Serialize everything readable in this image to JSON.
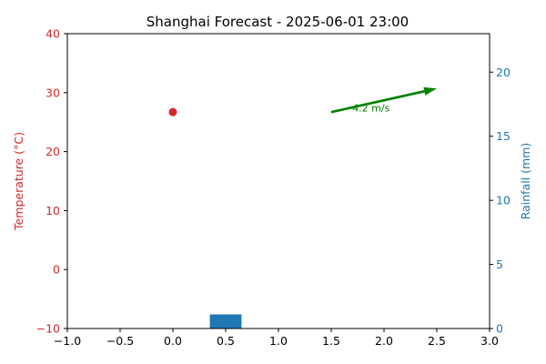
{
  "chart_data": {
    "type": "combo",
    "title": "Shanghai Forecast - 2025-06-01 23:00",
    "x_axis": {
      "xlim": [
        -1.0,
        3.0
      ],
      "ticks": [
        -1.0,
        -0.5,
        0.0,
        0.5,
        1.0,
        1.5,
        2.0,
        2.5,
        3.0
      ],
      "tick_labels": [
        "−1.0",
        "−0.5",
        "0.0",
        "0.5",
        "1.0",
        "1.5",
        "2.0",
        "2.5",
        "3.0"
      ]
    },
    "y_left": {
      "label": "Temperature (°C)",
      "ylim": [
        -10,
        40
      ],
      "ticks": [
        -10,
        0,
        10,
        20,
        30,
        40
      ],
      "tick_labels": [
        "−10",
        "0",
        "10",
        "20",
        "30",
        "40"
      ],
      "color": "#d62728"
    },
    "y_right": {
      "label": "Rainfall (mm)",
      "ylim": [
        0,
        23
      ],
      "ticks": [
        0,
        5,
        10,
        15,
        20
      ],
      "tick_labels": [
        "0",
        "5",
        "10",
        "15",
        "20"
      ],
      "color": "#1f77b4"
    },
    "temperature": {
      "x": 0.0,
      "y": 26.7,
      "color": "#d62728"
    },
    "rainfall": {
      "x": 0.5,
      "value": 1.1,
      "bar_width": 0.3,
      "color": "#1f77b4"
    },
    "wind": {
      "start": [
        1.5,
        26.7
      ],
      "end": [
        2.5,
        30.7
      ],
      "label": "4.2 m/s",
      "label_at": [
        1.7,
        26.8
      ],
      "color": "#008000"
    },
    "grid": false
  }
}
